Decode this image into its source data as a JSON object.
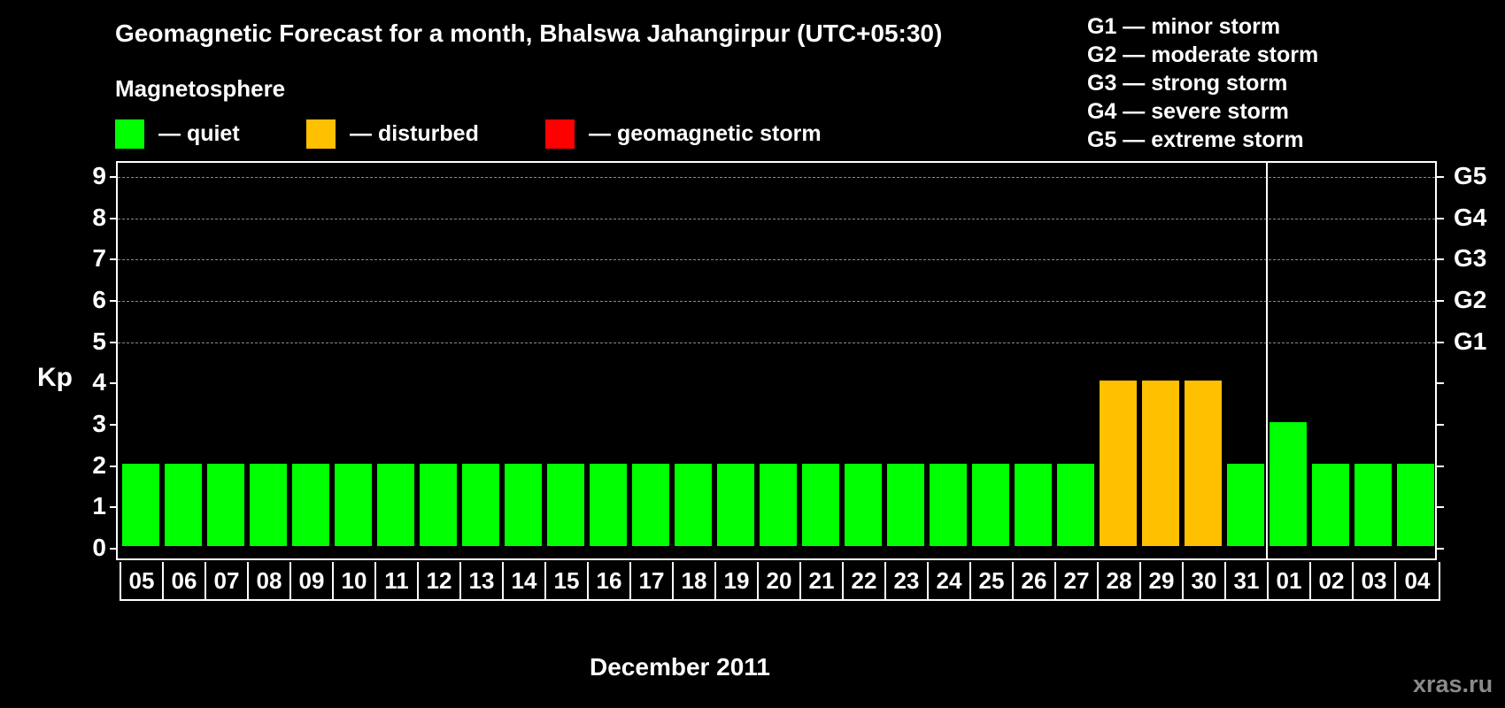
{
  "header": {
    "title": "Geomagnetic Forecast for a month, Bhalswa Jahangirpur (UTC+05:30)",
    "subtitle": "Magnetosphere"
  },
  "legend": [
    {
      "label": "— quiet",
      "color": "#00ff00"
    },
    {
      "label": "— disturbed",
      "color": "#ffc000"
    },
    {
      "label": "— geomagnetic storm",
      "color": "#ff0000"
    }
  ],
  "storm_scale": [
    "G1 — minor storm",
    "G2 — moderate storm",
    "G3 — strong storm",
    "G4 — severe storm",
    "G5 — extreme storm"
  ],
  "axes": {
    "ylabel": "Kp",
    "xlabel": "December 2011",
    "yticks": [
      "0",
      "1",
      "2",
      "3",
      "4",
      "5",
      "6",
      "7",
      "8",
      "9"
    ],
    "right_ticks": {
      "5": "G1",
      "6": "G2",
      "7": "G3",
      "8": "G4",
      "9": "G5"
    }
  },
  "watermark": "xras.ru",
  "chart_data": {
    "type": "bar",
    "title": "Geomagnetic Forecast for a month, Bhalswa Jahangirpur (UTC+05:30)",
    "subtitle": "Magnetosphere",
    "xlabel": "December 2011",
    "ylabel": "Kp",
    "ylim": [
      0,
      9
    ],
    "grid": "dashed horizontal at Kp 5–9",
    "categories": [
      "05",
      "06",
      "07",
      "08",
      "09",
      "10",
      "11",
      "12",
      "13",
      "14",
      "15",
      "16",
      "17",
      "18",
      "19",
      "20",
      "21",
      "22",
      "23",
      "24",
      "25",
      "26",
      "27",
      "28",
      "29",
      "30",
      "31",
      "01",
      "02",
      "03",
      "04"
    ],
    "values": [
      2,
      2,
      2,
      2,
      2,
      2,
      2,
      2,
      2,
      2,
      2,
      2,
      2,
      2,
      2,
      2,
      2,
      2,
      2,
      2,
      2,
      2,
      2,
      4,
      4,
      4,
      2,
      3,
      2,
      2,
      2
    ],
    "status": [
      "quiet",
      "quiet",
      "quiet",
      "quiet",
      "quiet",
      "quiet",
      "quiet",
      "quiet",
      "quiet",
      "quiet",
      "quiet",
      "quiet",
      "quiet",
      "quiet",
      "quiet",
      "quiet",
      "quiet",
      "quiet",
      "quiet",
      "quiet",
      "quiet",
      "quiet",
      "quiet",
      "disturbed",
      "disturbed",
      "disturbed",
      "quiet",
      "quiet",
      "quiet",
      "quiet",
      "quiet"
    ],
    "colors": {
      "quiet": "#00ff00",
      "disturbed": "#ffc000",
      "storm": "#ff0000"
    },
    "legend": [
      "quiet",
      "disturbed",
      "geomagnetic storm"
    ],
    "secondary_axis": {
      "5": "G1",
      "6": "G2",
      "7": "G3",
      "8": "G4",
      "9": "G5"
    },
    "month_boundary_after": "31"
  }
}
